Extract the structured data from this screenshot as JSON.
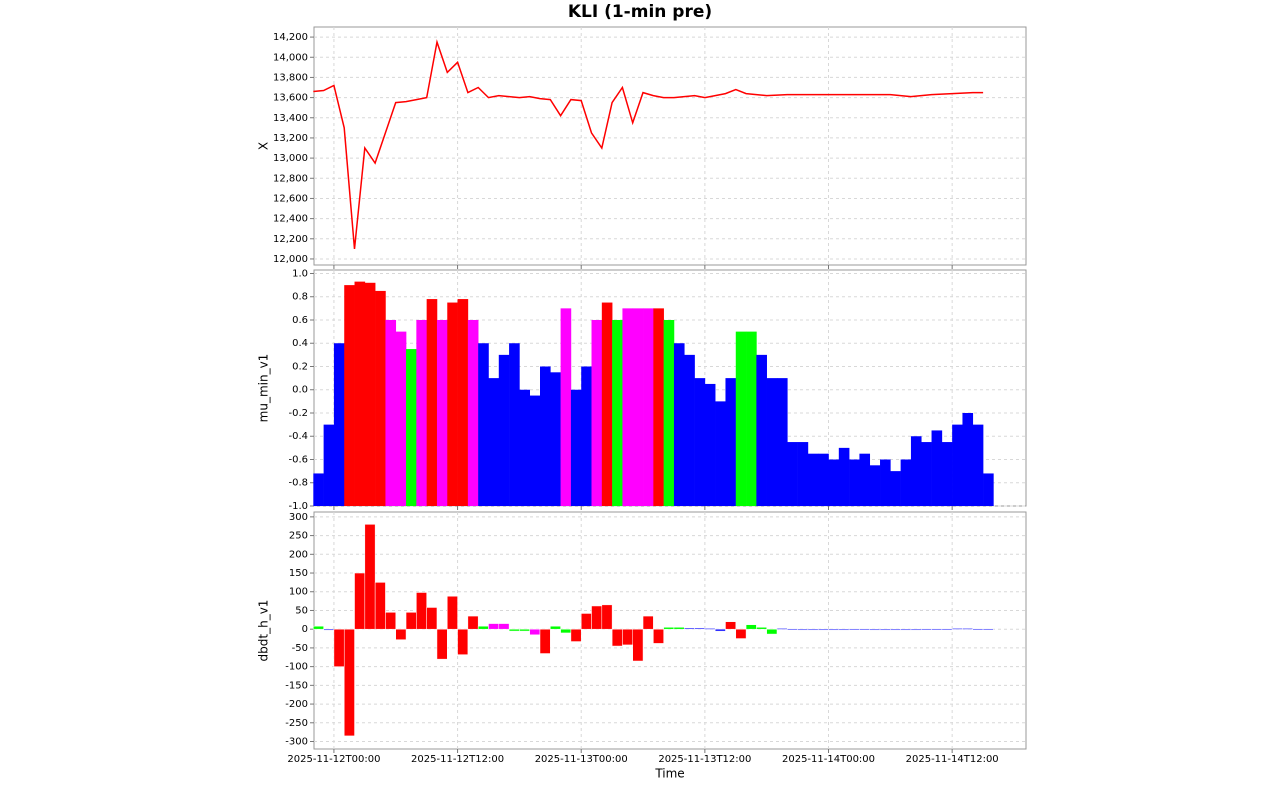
{
  "chart_data": [
    {
      "type": "line",
      "title": "KLI (1-min pre)",
      "y_label": "X",
      "color": "#ff0000",
      "grid": true,
      "x": [
        "2025-11-11T22:00",
        "2025-11-11T23:00",
        "2025-11-12T00:00",
        "2025-11-12T01:00",
        "2025-11-12T02:00",
        "2025-11-12T03:00",
        "2025-11-12T04:00",
        "2025-11-12T05:00",
        "2025-11-12T06:00",
        "2025-11-12T07:00",
        "2025-11-12T08:00",
        "2025-11-12T09:00",
        "2025-11-12T10:00",
        "2025-11-12T11:00",
        "2025-11-12T12:00",
        "2025-11-12T13:00",
        "2025-11-12T14:00",
        "2025-11-12T15:00",
        "2025-11-12T16:00",
        "2025-11-12T17:00",
        "2025-11-12T18:00",
        "2025-11-12T19:00",
        "2025-11-12T20:00",
        "2025-11-12T21:00",
        "2025-11-12T22:00",
        "2025-11-12T23:00",
        "2025-11-13T00:00",
        "2025-11-13T01:00",
        "2025-11-13T02:00",
        "2025-11-13T03:00",
        "2025-11-13T04:00",
        "2025-11-13T05:00",
        "2025-11-13T06:00",
        "2025-11-13T07:00",
        "2025-11-13T08:00",
        "2025-11-13T09:00",
        "2025-11-13T10:00",
        "2025-11-13T11:00",
        "2025-11-13T12:00",
        "2025-11-13T13:00",
        "2025-11-13T14:00",
        "2025-11-13T15:00",
        "2025-11-13T16:00",
        "2025-11-13T17:00",
        "2025-11-13T18:00",
        "2025-11-13T19:00",
        "2025-11-13T20:00",
        "2025-11-13T21:00",
        "2025-11-13T22:00",
        "2025-11-13T23:00",
        "2025-11-14T00:00",
        "2025-11-14T01:00",
        "2025-11-14T02:00",
        "2025-11-14T03:00",
        "2025-11-14T04:00",
        "2025-11-14T05:00",
        "2025-11-14T06:00",
        "2025-11-14T07:00",
        "2025-11-14T08:00",
        "2025-11-14T09:00",
        "2025-11-14T10:00",
        "2025-11-14T11:00",
        "2025-11-14T12:00",
        "2025-11-14T13:00",
        "2025-11-14T14:00",
        "2025-11-14T15:00"
      ],
      "values": [
        13660,
        13670,
        13720,
        13300,
        12100,
        13100,
        12950,
        13250,
        13550,
        13560,
        13580,
        13600,
        14150,
        13850,
        13950,
        13650,
        13700,
        13600,
        13620,
        13610,
        13600,
        13610,
        13590,
        13580,
        13420,
        13580,
        13570,
        13250,
        13100,
        13550,
        13700,
        13350,
        13650,
        13620,
        13600,
        13600,
        13610,
        13620,
        13600,
        13620,
        13640,
        13680,
        13640,
        13630,
        13620,
        13625,
        13630,
        13630,
        13630,
        13630,
        13630,
        13630,
        13630,
        13630,
        13630,
        13630,
        13630,
        13620,
        13610,
        13620,
        13630,
        13635,
        13640,
        13645,
        13650,
        13650
      ],
      "xlim": [
        "2025-11-11T22:04",
        "2025-11-14T19:10"
      ],
      "xticks": [
        "2025-11-12T00:00",
        "2025-11-12T12:00",
        "2025-11-13T00:00",
        "2025-11-13T12:00",
        "2025-11-14T00:00",
        "2025-11-14T12:00"
      ],
      "ylim": [
        11940,
        14300
      ],
      "yticks": [
        {
          "value": 12000,
          "label": "12,000"
        },
        {
          "value": 12200,
          "label": "12,200"
        },
        {
          "value": 12400,
          "label": "12,400"
        },
        {
          "value": 12600,
          "label": "12,600"
        },
        {
          "value": 12800,
          "label": "12,800"
        },
        {
          "value": 13000,
          "label": "13,000"
        },
        {
          "value": 13200,
          "label": "13,200"
        },
        {
          "value": 13400,
          "label": "13,400"
        },
        {
          "value": 13600,
          "label": "13,600"
        },
        {
          "value": 13800,
          "label": "13,800"
        },
        {
          "value": 14000,
          "label": "14,000"
        },
        {
          "value": 14200,
          "label": "14,200"
        }
      ]
    },
    {
      "type": "area",
      "y_label": "mu_min_v1",
      "grid": true,
      "x": [
        "2025-11-11T22:00",
        "2025-11-11T23:00",
        "2025-11-12T00:00",
        "2025-11-12T01:00",
        "2025-11-12T02:00",
        "2025-11-12T03:00",
        "2025-11-12T04:00",
        "2025-11-12T05:00",
        "2025-11-12T06:00",
        "2025-11-12T07:00",
        "2025-11-12T08:00",
        "2025-11-12T09:00",
        "2025-11-12T10:00",
        "2025-11-12T11:00",
        "2025-11-12T12:00",
        "2025-11-12T13:00",
        "2025-11-12T14:00",
        "2025-11-12T15:00",
        "2025-11-12T16:00",
        "2025-11-12T17:00",
        "2025-11-12T18:00",
        "2025-11-12T19:00",
        "2025-11-12T20:00",
        "2025-11-12T21:00",
        "2025-11-12T22:00",
        "2025-11-12T23:00",
        "2025-11-13T00:00",
        "2025-11-13T01:00",
        "2025-11-13T02:00",
        "2025-11-13T03:00",
        "2025-11-13T04:00",
        "2025-11-13T05:00",
        "2025-11-13T06:00",
        "2025-11-13T07:00",
        "2025-11-13T08:00",
        "2025-11-13T09:00",
        "2025-11-13T10:00",
        "2025-11-13T11:00",
        "2025-11-13T12:00",
        "2025-11-13T13:00",
        "2025-11-13T14:00",
        "2025-11-13T15:00",
        "2025-11-13T16:00",
        "2025-11-13T17:00",
        "2025-11-13T18:00",
        "2025-11-13T19:00",
        "2025-11-13T20:00",
        "2025-11-13T21:00",
        "2025-11-13T22:00",
        "2025-11-13T23:00",
        "2025-11-14T00:00",
        "2025-11-14T01:00",
        "2025-11-14T02:00",
        "2025-11-14T03:00",
        "2025-11-14T04:00",
        "2025-11-14T05:00",
        "2025-11-14T06:00",
        "2025-11-14T07:00",
        "2025-11-14T08:00",
        "2025-11-14T09:00",
        "2025-11-14T10:00",
        "2025-11-14T11:00",
        "2025-11-14T12:00",
        "2025-11-14T13:00",
        "2025-11-14T14:00",
        "2025-11-14T15:00"
      ],
      "values": [
        -0.72,
        -0.3,
        0.4,
        0.9,
        0.93,
        0.92,
        0.85,
        0.6,
        0.5,
        0.35,
        0.6,
        0.78,
        0.6,
        0.75,
        0.78,
        0.6,
        0.4,
        0.1,
        0.3,
        0.4,
        0.0,
        -0.05,
        0.2,
        0.15,
        0.7,
        0.0,
        0.2,
        0.6,
        0.75,
        0.6,
        0.7,
        0.7,
        0.7,
        0.7,
        0.6,
        0.4,
        0.3,
        0.1,
        0.05,
        -0.1,
        0.1,
        0.5,
        0.5,
        0.3,
        0.1,
        0.1,
        -0.45,
        -0.45,
        -0.55,
        -0.55,
        -0.6,
        -0.5,
        -0.6,
        -0.55,
        -0.65,
        -0.6,
        -0.7,
        -0.6,
        -0.4,
        -0.45,
        -0.35,
        -0.45,
        -0.3,
        -0.2,
        -0.3,
        -0.72
      ],
      "colors": [
        "#0000ff",
        "#0000ff",
        "#0000ff",
        "#ff0000",
        "#ff0000",
        "#ff0000",
        "#ff0000",
        "#ff00ff",
        "#ff00ff",
        "#00ff00",
        "#ff00ff",
        "#ff0000",
        "#ff00ff",
        "#ff0000",
        "#ff0000",
        "#ff00ff",
        "#0000ff",
        "#0000ff",
        "#0000ff",
        "#0000ff",
        "#0000ff",
        "#0000ff",
        "#0000ff",
        "#0000ff",
        "#ff00ff",
        "#0000ff",
        "#0000ff",
        "#ff00ff",
        "#ff0000",
        "#00ff00",
        "#ff00ff",
        "#ff00ff",
        "#ff00ff",
        "#ff0000",
        "#00ff00",
        "#0000ff",
        "#0000ff",
        "#0000ff",
        "#0000ff",
        "#0000ff",
        "#0000ff",
        "#00ff00",
        "#00ff00",
        "#0000ff",
        "#0000ff",
        "#0000ff",
        "#0000ff",
        "#0000ff",
        "#0000ff",
        "#0000ff",
        "#0000ff",
        "#0000ff",
        "#0000ff",
        "#0000ff",
        "#0000ff",
        "#0000ff",
        "#0000ff",
        "#0000ff",
        "#0000ff",
        "#0000ff",
        "#0000ff",
        "#0000ff",
        "#0000ff",
        "#0000ff",
        "#0000ff",
        "#0000ff"
      ],
      "xlim": [
        "2025-11-11T22:04",
        "2025-11-14T19:10"
      ],
      "xticks": [
        "2025-11-12T00:00",
        "2025-11-12T12:00",
        "2025-11-13T00:00",
        "2025-11-13T12:00",
        "2025-11-14T00:00",
        "2025-11-14T12:00"
      ],
      "ylim": [
        -1.0,
        1.03
      ],
      "yticks": [
        {
          "value": -1.0,
          "label": "-1.0"
        },
        -0.8,
        -0.6,
        -0.4,
        -0.2,
        {
          "value": 0.0,
          "label": "0.0"
        },
        0.2,
        0.4,
        0.6,
        0.8,
        {
          "value": 1.0,
          "label": "1.0"
        }
      ]
    },
    {
      "type": "bar",
      "y_label": "dbdt_h_v1",
      "x_label": "Time",
      "grid": true,
      "x": [
        "2025-11-11T22:00",
        "2025-11-11T23:00",
        "2025-11-12T00:00",
        "2025-11-12T01:00",
        "2025-11-12T02:00",
        "2025-11-12T03:00",
        "2025-11-12T04:00",
        "2025-11-12T05:00",
        "2025-11-12T06:00",
        "2025-11-12T07:00",
        "2025-11-12T08:00",
        "2025-11-12T09:00",
        "2025-11-12T10:00",
        "2025-11-12T11:00",
        "2025-11-12T12:00",
        "2025-11-12T13:00",
        "2025-11-12T14:00",
        "2025-11-12T15:00",
        "2025-11-12T16:00",
        "2025-11-12T17:00",
        "2025-11-12T18:00",
        "2025-11-12T19:00",
        "2025-11-12T20:00",
        "2025-11-12T21:00",
        "2025-11-12T22:00",
        "2025-11-12T23:00",
        "2025-11-13T00:00",
        "2025-11-13T01:00",
        "2025-11-13T02:00",
        "2025-11-13T03:00",
        "2025-11-13T04:00",
        "2025-11-13T05:00",
        "2025-11-13T06:00",
        "2025-11-13T07:00",
        "2025-11-13T08:00",
        "2025-11-13T09:00",
        "2025-11-13T10:00",
        "2025-11-13T11:00",
        "2025-11-13T12:00",
        "2025-11-13T13:00",
        "2025-11-13T14:00",
        "2025-11-13T15:00",
        "2025-11-13T16:00",
        "2025-11-13T17:00",
        "2025-11-13T18:00",
        "2025-11-13T19:00",
        "2025-11-13T20:00",
        "2025-11-13T21:00",
        "2025-11-13T22:00",
        "2025-11-13T23:00",
        "2025-11-14T00:00",
        "2025-11-14T01:00",
        "2025-11-14T02:00",
        "2025-11-14T03:00",
        "2025-11-14T04:00",
        "2025-11-14T05:00",
        "2025-11-14T06:00",
        "2025-11-14T07:00",
        "2025-11-14T08:00",
        "2025-11-14T09:00",
        "2025-11-14T10:00",
        "2025-11-14T11:00",
        "2025-11-14T12:00",
        "2025-11-14T13:00",
        "2025-11-14T14:00",
        "2025-11-14T15:00"
      ],
      "values": [
        8,
        -3,
        -100,
        -285,
        150,
        280,
        125,
        45,
        -28,
        45,
        98,
        58,
        -80,
        88,
        -68,
        35,
        8,
        15,
        15,
        -5,
        -5,
        -15,
        -65,
        8,
        -10,
        -33,
        42,
        62,
        65,
        -45,
        -42,
        -85,
        35,
        -38,
        5,
        5,
        3,
        3,
        2,
        -5,
        20,
        -25,
        12,
        5,
        -13,
        2,
        1,
        -1,
        -1,
        -2,
        -1,
        0,
        1,
        1,
        0,
        -1,
        -1,
        -1,
        0,
        1,
        1,
        1,
        2,
        2,
        1,
        1
      ],
      "colors": [
        "#00ff00",
        "#0000ff",
        "#ff0000",
        "#ff0000",
        "#ff0000",
        "#ff0000",
        "#ff0000",
        "#ff0000",
        "#ff0000",
        "#ff0000",
        "#ff0000",
        "#ff0000",
        "#ff0000",
        "#ff0000",
        "#ff0000",
        "#ff0000",
        "#00ff00",
        "#ff00ff",
        "#ff00ff",
        "#00ff00",
        "#00ff00",
        "#ff00ff",
        "#ff0000",
        "#00ff00",
        "#00ff00",
        "#ff0000",
        "#ff0000",
        "#ff0000",
        "#ff0000",
        "#ff0000",
        "#ff0000",
        "#ff0000",
        "#ff0000",
        "#ff0000",
        "#00ff00",
        "#00ff00",
        "#0000ff",
        "#0000ff",
        "#0000ff",
        "#0000ff",
        "#ff0000",
        "#ff0000",
        "#00ff00",
        "#00ff00",
        "#00ff00",
        "#0000ff",
        "#0000ff",
        "#0000ff",
        "#0000ff",
        "#0000ff",
        "#0000ff",
        "#0000ff",
        "#0000ff",
        "#0000ff",
        "#0000ff",
        "#0000ff",
        "#0000ff",
        "#0000ff",
        "#0000ff",
        "#0000ff",
        "#0000ff",
        "#0000ff",
        "#0000ff",
        "#0000ff",
        "#0000ff",
        "#0000ff"
      ],
      "xlim": [
        "2025-11-11T22:04",
        "2025-11-14T19:10"
      ],
      "xticks": [
        "2025-11-12T00:00",
        "2025-11-12T12:00",
        "2025-11-13T00:00",
        "2025-11-13T12:00",
        "2025-11-14T00:00",
        "2025-11-14T12:00"
      ],
      "ylim": [
        -320,
        313
      ],
      "yticks": [
        -300,
        -250,
        -200,
        -150,
        -100,
        -50,
        0,
        50,
        100,
        150,
        200,
        250,
        300
      ]
    }
  ]
}
